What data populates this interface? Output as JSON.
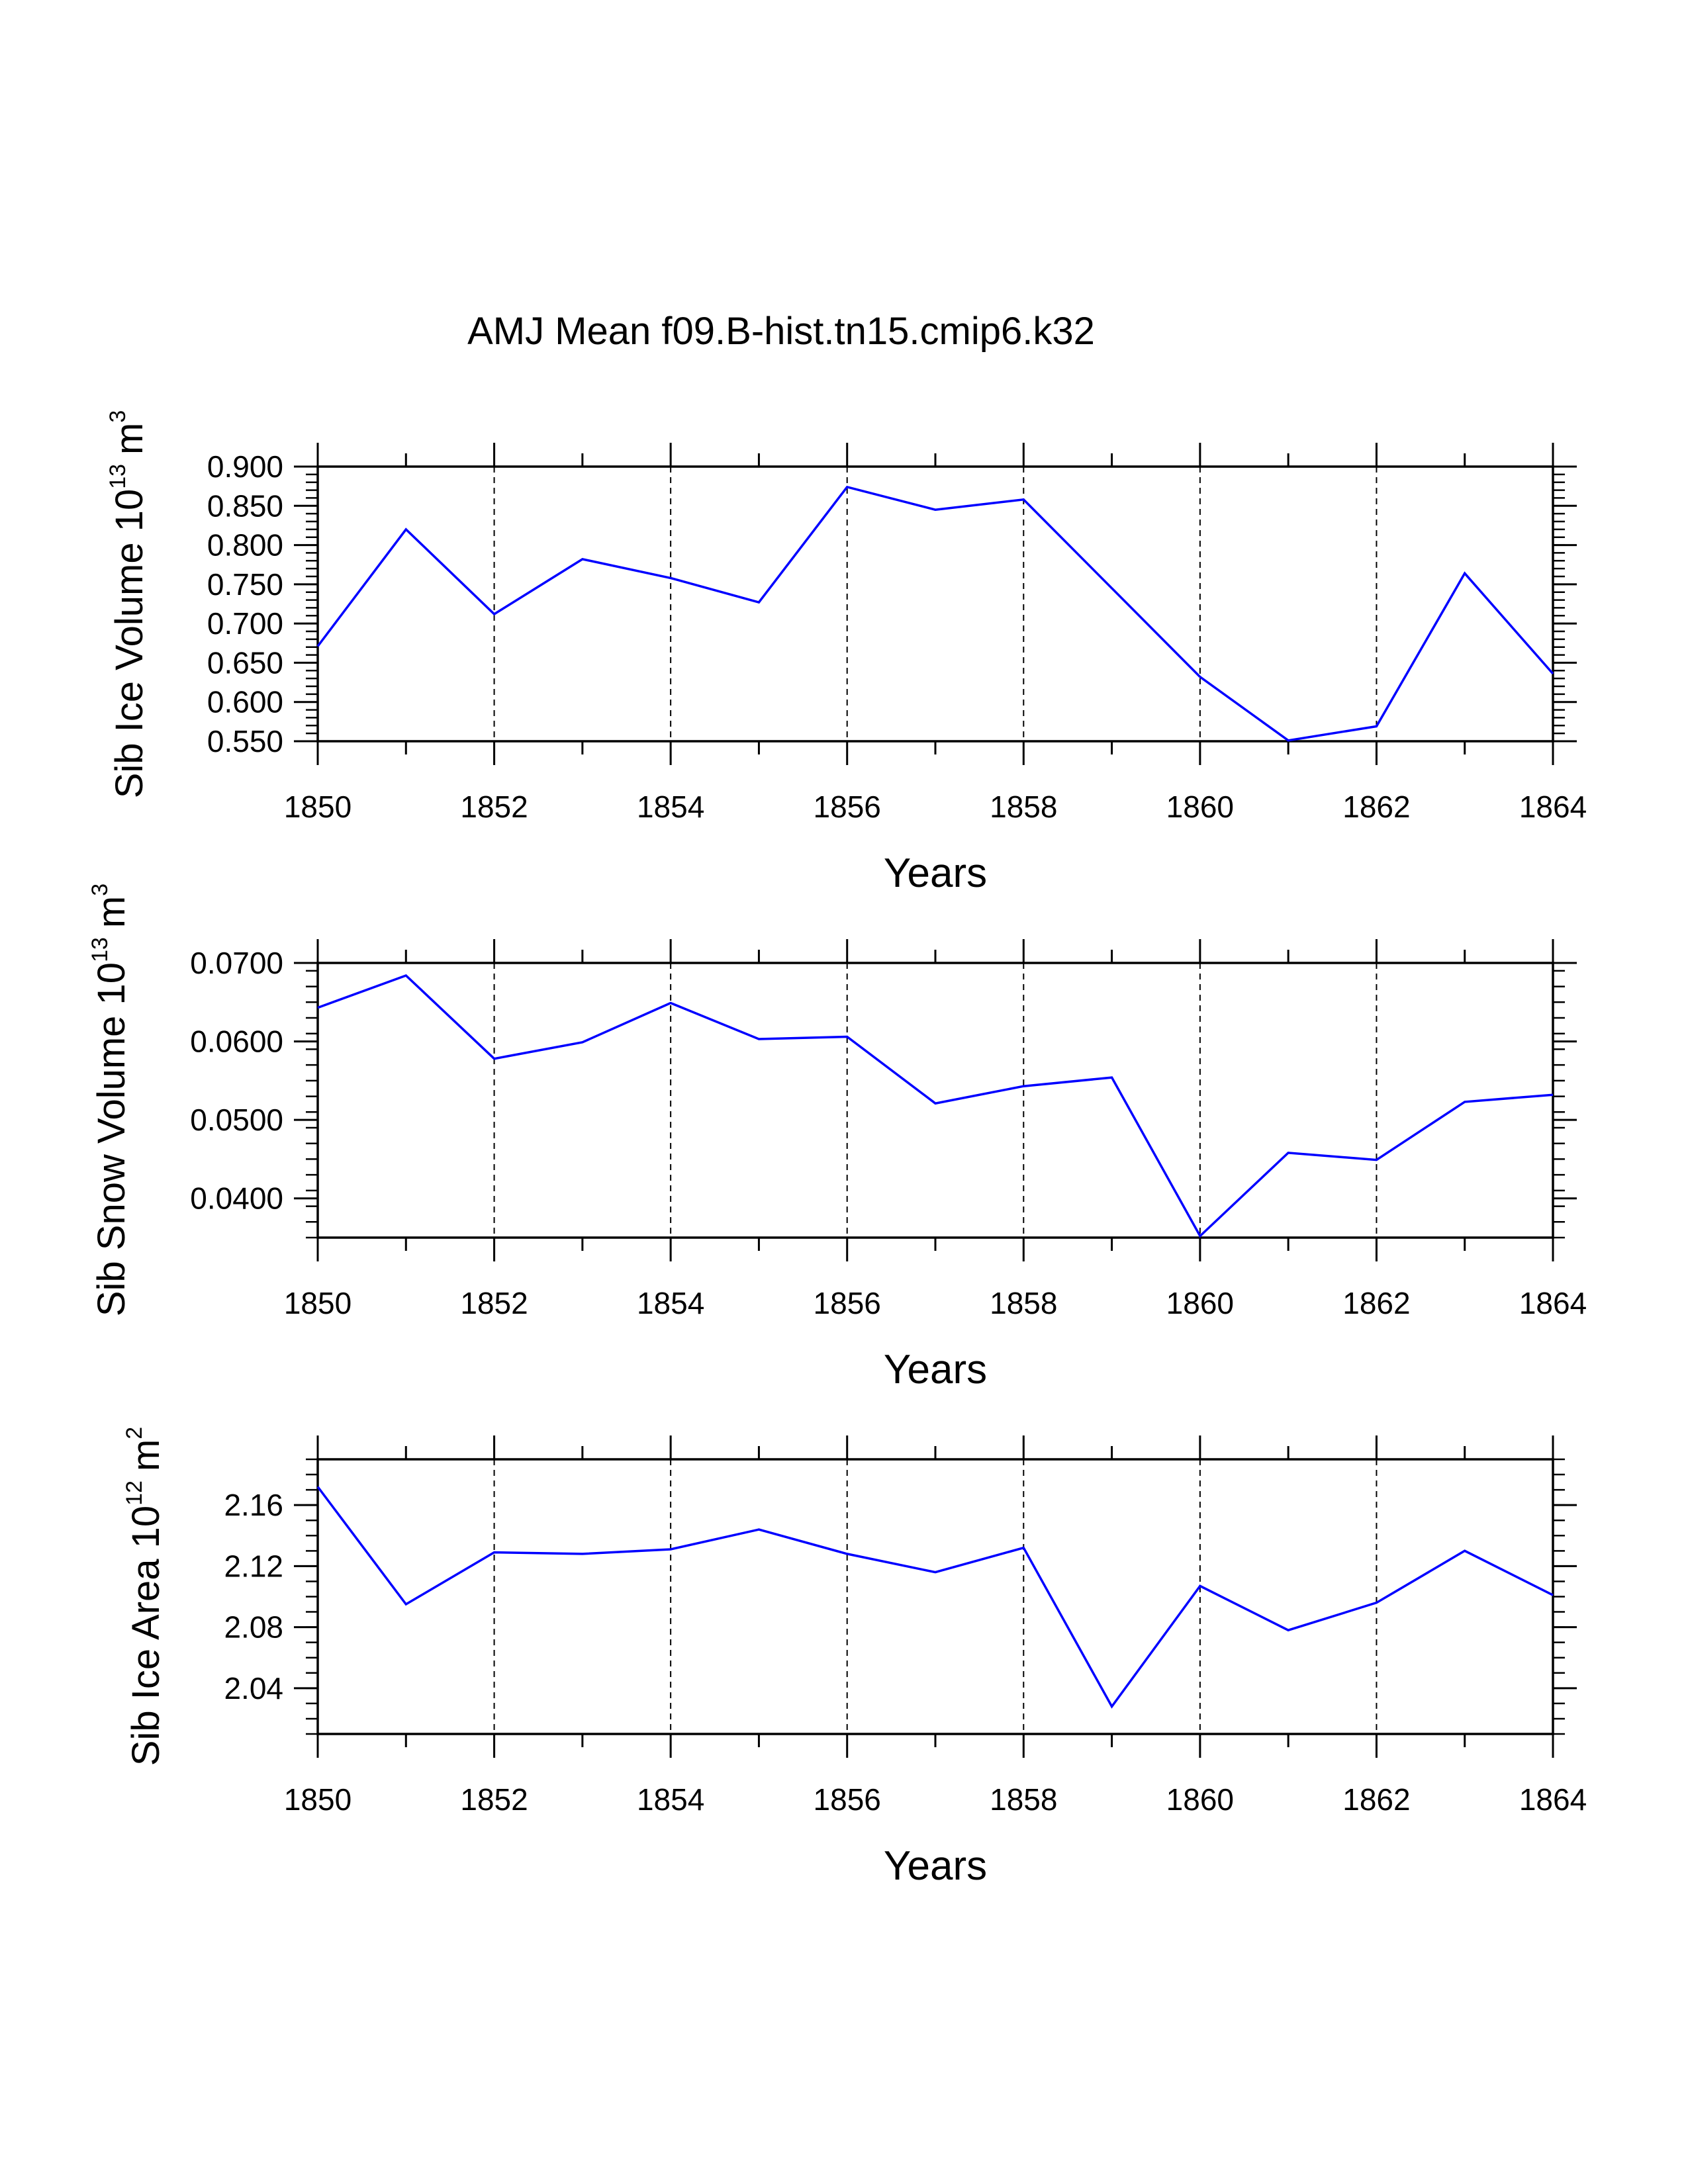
{
  "figure_title": "AMJ Mean f09.B-hist.tn15.cmip6.k32",
  "line_color": "#0000ff",
  "chart_data": [
    {
      "type": "line",
      "title": "AMJ Mean f09.B-hist.tn15.cmip6.k32",
      "xlabel": "Years",
      "ylabel_main": "Sib Ice Volume 10",
      "ylabel_exp": "13",
      "ylabel_unit": "m",
      "ylabel_unit_exp": "3",
      "x": [
        1850,
        1851,
        1852,
        1853,
        1854,
        1855,
        1856,
        1857,
        1858,
        1859,
        1860,
        1861,
        1862,
        1863,
        1864
      ],
      "y": [
        0.671,
        0.82,
        0.712,
        0.782,
        0.758,
        0.727,
        0.874,
        0.845,
        0.858,
        0.745,
        0.632,
        0.551,
        0.569,
        0.764,
        0.636
      ],
      "xlim": [
        1850,
        1864
      ],
      "ylim": [
        0.55,
        0.9
      ],
      "xticks": [
        "1850",
        "1852",
        "1854",
        "1856",
        "1858",
        "1860",
        "1862",
        "1864"
      ],
      "yticks": [
        "0.550",
        "0.600",
        "0.650",
        "0.700",
        "0.750",
        "0.800",
        "0.850",
        "0.900"
      ],
      "grid": "vertical dashed at major x ticks"
    },
    {
      "type": "line",
      "xlabel": "Years",
      "ylabel_main": "Sib Snow Volume 10",
      "ylabel_exp": "13",
      "ylabel_unit": "m",
      "ylabel_unit_exp": "3",
      "x": [
        1850,
        1851,
        1852,
        1853,
        1854,
        1855,
        1856,
        1857,
        1858,
        1859,
        1860,
        1861,
        1862,
        1863,
        1864
      ],
      "y": [
        0.0643,
        0.0684,
        0.0578,
        0.0599,
        0.0649,
        0.0603,
        0.0606,
        0.0521,
        0.0543,
        0.0554,
        0.0352,
        0.0458,
        0.0449,
        0.0523,
        0.0532
      ],
      "xlim": [
        1850,
        1864
      ],
      "ylim": [
        0.035,
        0.07
      ],
      "xticks": [
        "1850",
        "1852",
        "1854",
        "1856",
        "1858",
        "1860",
        "1862",
        "1864"
      ],
      "yticks": [
        "0.0400",
        "0.0500",
        "0.0600",
        "0.0700"
      ],
      "grid": "vertical dashed at major x ticks"
    },
    {
      "type": "line",
      "xlabel": "Years",
      "ylabel_main": "Sib Ice Area 10",
      "ylabel_exp": "12",
      "ylabel_unit": "m",
      "ylabel_unit_exp": "2",
      "x": [
        1850,
        1851,
        1852,
        1853,
        1854,
        1855,
        1856,
        1857,
        1858,
        1859,
        1860,
        1861,
        1862,
        1863,
        1864
      ],
      "y": [
        2.172,
        2.095,
        2.129,
        2.128,
        2.131,
        2.144,
        2.128,
        2.116,
        2.132,
        2.028,
        2.107,
        2.078,
        2.096,
        2.13,
        2.101
      ],
      "xlim": [
        1850,
        1864
      ],
      "ylim": [
        2.01,
        2.19
      ],
      "xticks": [
        "1850",
        "1852",
        "1854",
        "1856",
        "1858",
        "1860",
        "1862",
        "1864"
      ],
      "yticks": [
        "2.04",
        "2.08",
        "2.12",
        "2.16"
      ],
      "grid": "vertical dashed at major x ticks"
    }
  ]
}
